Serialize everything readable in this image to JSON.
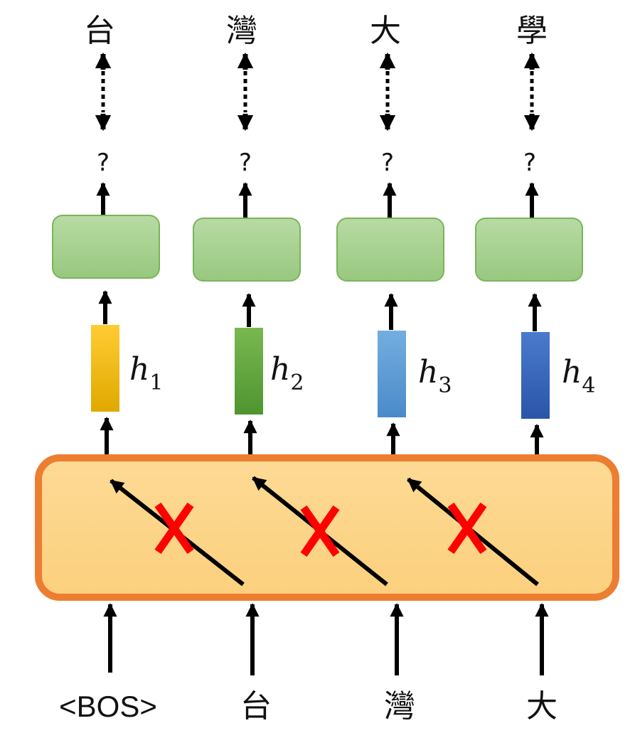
{
  "outputs": [
    "台",
    "灣",
    "大",
    "學"
  ],
  "question_marks": [
    "?",
    "?",
    "?",
    "?"
  ],
  "hidden_states": [
    {
      "symbol": "h",
      "sub": "1",
      "color": "#F2B705"
    },
    {
      "symbol": "h",
      "sub": "2",
      "color": "#5FA63A"
    },
    {
      "symbol": "h",
      "sub": "3",
      "color": "#5B9BD5"
    },
    {
      "symbol": "h",
      "sub": "4",
      "color": "#3563B8"
    }
  ],
  "inputs": [
    "<BOS>",
    "台",
    "灣",
    "大"
  ],
  "colors": {
    "decoder_fill": "#FDD589",
    "decoder_border": "#ED7D31",
    "output_layer_fill": "#A9D18E",
    "output_layer_border": "#70AD47",
    "cross": "#FF0000",
    "arrow": "#000000"
  }
}
